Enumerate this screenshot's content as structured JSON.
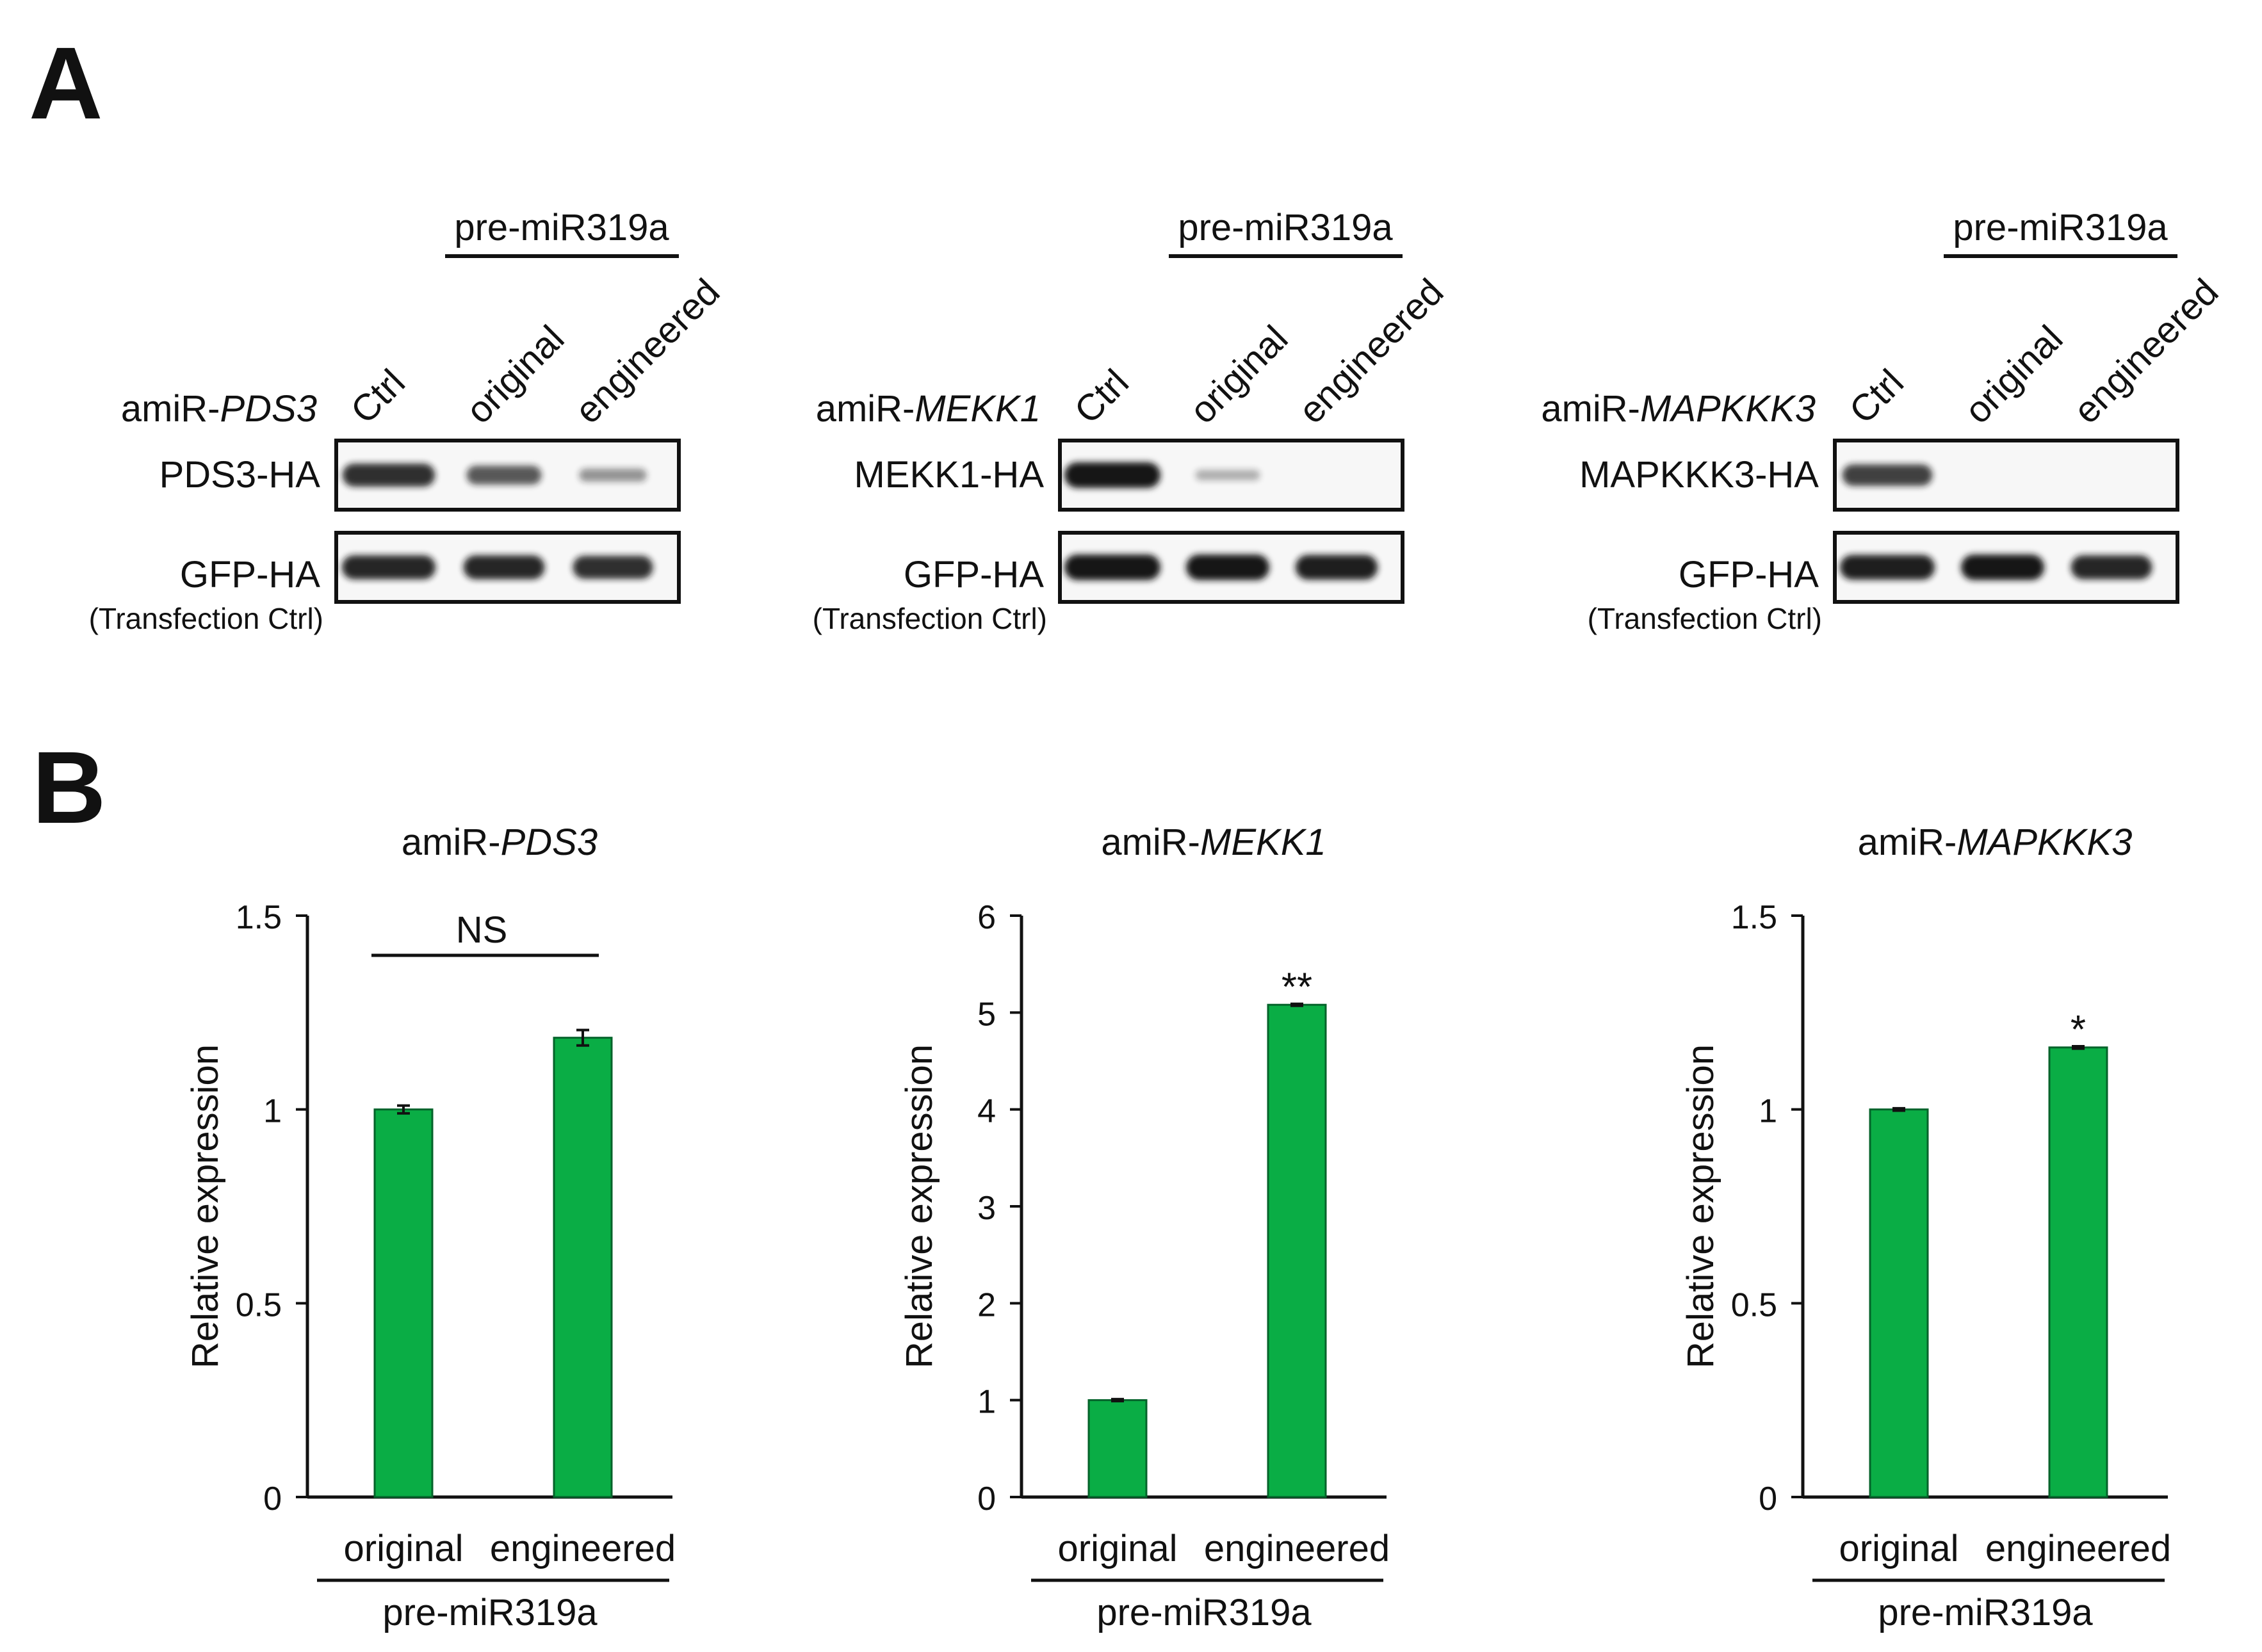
{
  "panels": {
    "a_label": "A",
    "b_label": "B"
  },
  "colors": {
    "bar": "#0aad45",
    "bar_edge": "#04632a",
    "blot_bg": "#f7f7f7",
    "band": "#141414",
    "text": "#111111"
  },
  "blots": [
    {
      "title_prefix": "amiR-",
      "title_gene": "PDS3",
      "group_label": "pre-miR319a",
      "lanes": [
        "Ctrl",
        "original",
        "engineered"
      ],
      "rows": [
        {
          "label": "PDS3-HA",
          "sublabel": "",
          "band_intensity": [
            0.85,
            0.6,
            0.25
          ]
        },
        {
          "label": "GFP-HA",
          "sublabel": "(Transfection Ctrl)",
          "band_intensity": [
            0.9,
            0.9,
            0.85
          ]
        }
      ]
    },
    {
      "title_prefix": "amiR-",
      "title_gene": "MEKK1",
      "group_label": "pre-miR319a",
      "lanes": [
        "Ctrl",
        "original",
        "engineered"
      ],
      "rows": [
        {
          "label": "MEKK1-HA",
          "sublabel": "",
          "band_intensity": [
            1.0,
            0.1,
            0.0
          ]
        },
        {
          "label": "GFP-HA",
          "sublabel": "(Transfection Ctrl)",
          "band_intensity": [
            1.0,
            1.0,
            0.95
          ]
        }
      ]
    },
    {
      "title_prefix": "amiR-",
      "title_gene": "MAPKKK3",
      "group_label": "pre-miR319a",
      "lanes": [
        "Ctrl",
        "original",
        "engineered"
      ],
      "rows": [
        {
          "label": "MAPKKK3-HA",
          "sublabel": "",
          "band_intensity": [
            0.75,
            0.0,
            0.0
          ]
        },
        {
          "label": "GFP-HA",
          "sublabel": "(Transfection Ctrl)",
          "band_intensity": [
            0.95,
            1.0,
            0.9
          ]
        }
      ]
    }
  ],
  "chart_data": [
    {
      "type": "bar",
      "title_prefix": "amiR-",
      "title_gene": "PDS3",
      "categories": [
        "original",
        "engineered"
      ],
      "values": [
        1.0,
        1.185
      ],
      "errors": [
        0.01,
        0.02
      ],
      "ylabel": "Relative expression",
      "xgroup_label": "pre-miR319a",
      "ylim": [
        0,
        1.5
      ],
      "yticks": [
        0,
        0.5,
        1,
        1.5
      ],
      "ytick_labels": [
        "0",
        "0.5",
        "1",
        "1.5"
      ],
      "significance": {
        "label": "NS",
        "type": "bracket"
      }
    },
    {
      "type": "bar",
      "title_prefix": "amiR-",
      "title_gene": "MEKK1",
      "categories": [
        "original",
        "engineered"
      ],
      "values": [
        1.0,
        5.08
      ],
      "errors": [
        0.01,
        0.01
      ],
      "ylabel": "Relative expression",
      "xgroup_label": "pre-miR319a",
      "ylim": [
        0,
        6
      ],
      "yticks": [
        0,
        1,
        2,
        3,
        4,
        5,
        6
      ],
      "ytick_labels": [
        "0",
        "1",
        "2",
        "3",
        "4",
        "5",
        "6"
      ],
      "significance": {
        "label": "**",
        "type": "star",
        "bar_index": 1
      }
    },
    {
      "type": "bar",
      "title_prefix": "amiR-",
      "title_gene": "MAPKKK3",
      "categories": [
        "original",
        "engineered"
      ],
      "values": [
        1.0,
        1.16
      ],
      "errors": [
        0.003,
        0.003
      ],
      "ylabel": "Relative expression",
      "xgroup_label": "pre-miR319a",
      "ylim": [
        0,
        1.5
      ],
      "yticks": [
        0,
        0.5,
        1,
        1.5
      ],
      "ytick_labels": [
        "0",
        "0.5",
        "1",
        "1.5"
      ],
      "significance": {
        "label": "*",
        "type": "star",
        "bar_index": 1
      }
    }
  ]
}
